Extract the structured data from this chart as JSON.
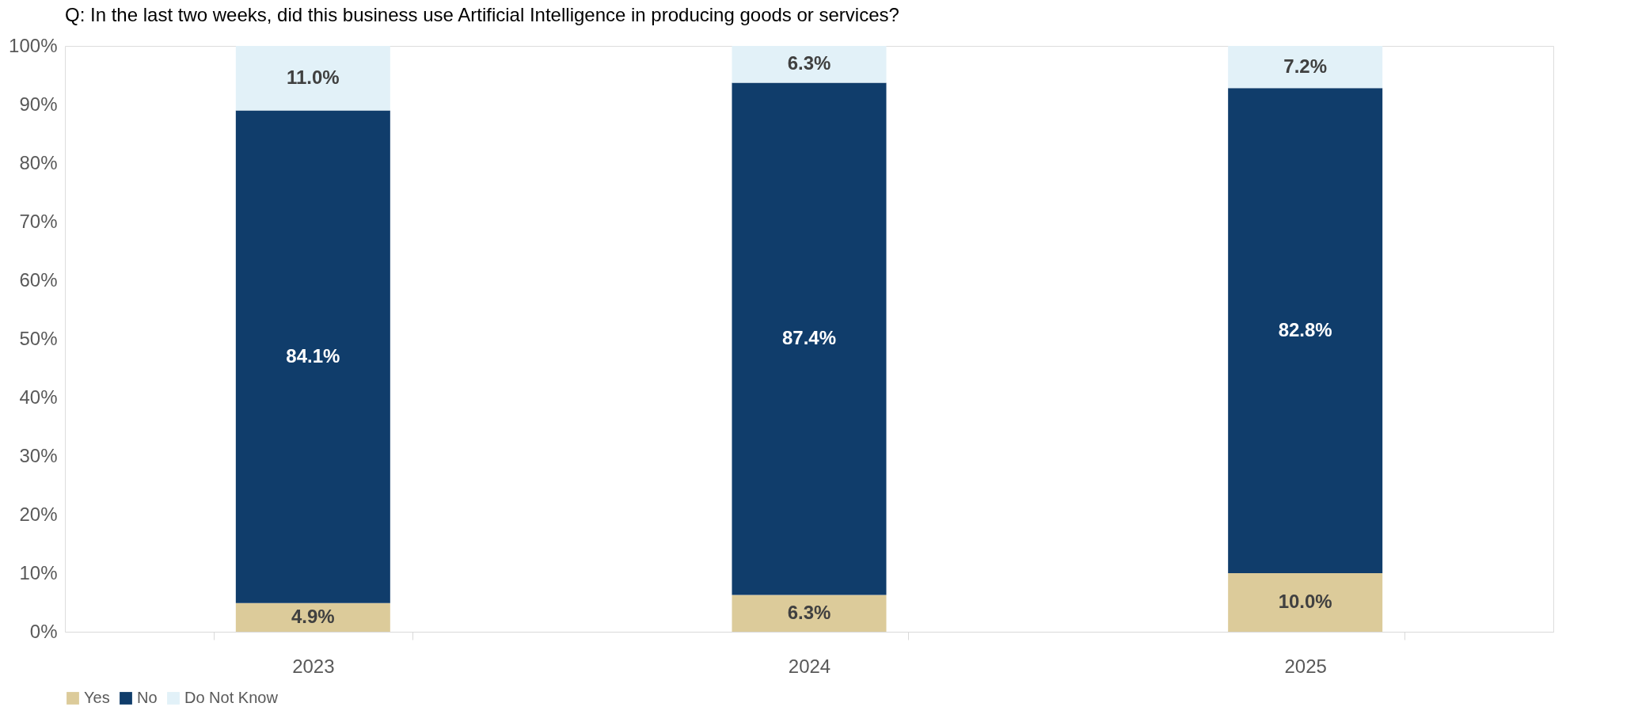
{
  "chart_data": {
    "type": "bar",
    "title": "Q: In the last two weeks, did this business use Artificial Intelligence in producing goods or services?",
    "categories": [
      "2023",
      "2024",
      "2025"
    ],
    "stacked": true,
    "series": [
      {
        "name": "Yes",
        "color": "#dccb9a",
        "values": [
          4.9,
          6.3,
          10.0
        ],
        "value_labels": [
          "4.9%",
          "6.3%",
          "10.0%"
        ]
      },
      {
        "name": "No",
        "color": "#103d6b",
        "values": [
          84.1,
          87.4,
          82.8
        ],
        "value_labels": [
          "84.1%",
          "87.4%",
          "82.8%"
        ]
      },
      {
        "name": "Do Not Know",
        "color": "#e2f1f8",
        "values": [
          11.0,
          6.3,
          7.2
        ],
        "value_labels": [
          "11.0%",
          "6.3%",
          "7.2%"
        ]
      }
    ],
    "ylim": [
      0,
      100
    ],
    "yticks": [
      {
        "value": 0,
        "label": "0%"
      },
      {
        "value": 10,
        "label": "10%"
      },
      {
        "value": 20,
        "label": "20%"
      },
      {
        "value": 30,
        "label": "30%"
      },
      {
        "value": 40,
        "label": "40%"
      },
      {
        "value": 50,
        "label": "50%"
      },
      {
        "value": 60,
        "label": "60%"
      },
      {
        "value": 70,
        "label": "70%"
      },
      {
        "value": 80,
        "label": "80%"
      },
      {
        "value": 90,
        "label": "90%"
      },
      {
        "value": 100,
        "label": "100%"
      }
    ],
    "grid": false,
    "legend": "bottom"
  }
}
